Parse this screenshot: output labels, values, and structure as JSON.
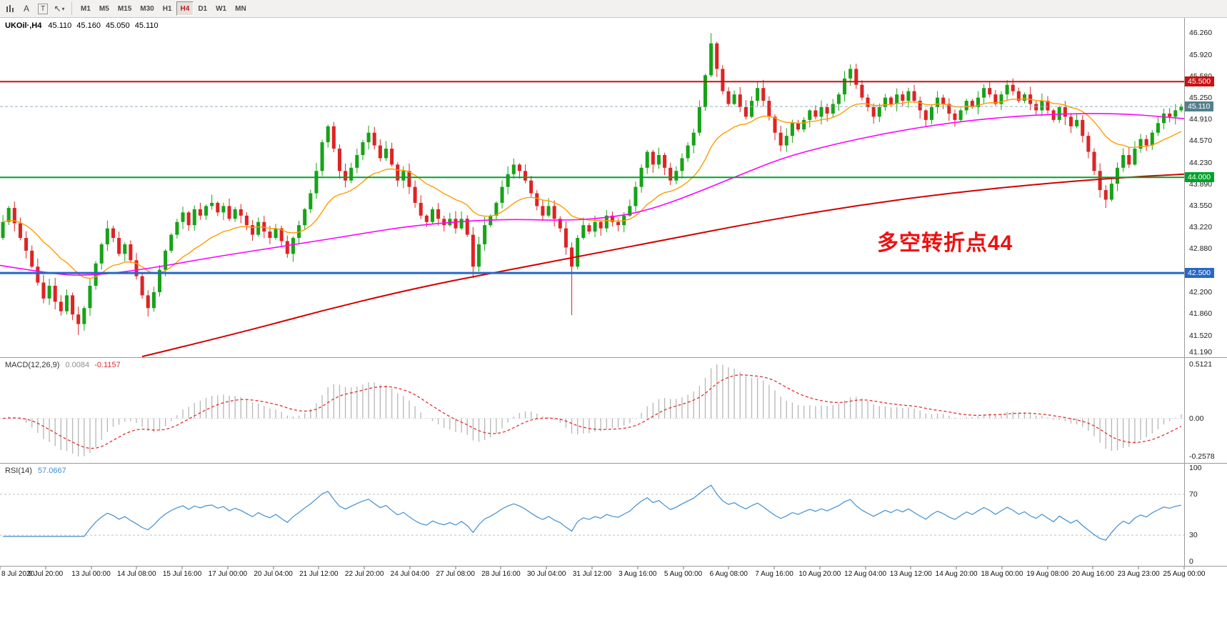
{
  "toolbar": {
    "icon_a": "A",
    "icon_t": "T",
    "icon_cursor": "↖",
    "icon_caret": "▾",
    "timeframes": [
      "M1",
      "M5",
      "M15",
      "M30",
      "H1",
      "H4",
      "D1",
      "W1",
      "MN"
    ],
    "active_timeframe": "H4"
  },
  "chart_header": {
    "symbol": "UKOil·,H4",
    "open": "45.110",
    "high": "45.160",
    "low": "45.050",
    "close": "45.110"
  },
  "chart_data": {
    "type": "candlestick",
    "symbol": "UKOil",
    "timeframe": "H4",
    "title": "UKOil·,H4 45.110 45.160 45.050 45.110",
    "ohlc_current": {
      "open": 45.11,
      "high": 45.16,
      "low": 45.05,
      "close": 45.11
    },
    "price_range": [
      41.18,
      46.5
    ],
    "open_first": 43.05,
    "closes": [
      43.3,
      43.52,
      43.28,
      43.05,
      42.85,
      42.6,
      42.35,
      42.1,
      42.3,
      42.05,
      41.9,
      42.15,
      41.85,
      41.7,
      41.95,
      42.3,
      42.65,
      42.95,
      43.2,
      43.05,
      42.8,
      42.95,
      42.7,
      42.45,
      42.15,
      41.95,
      42.2,
      42.55,
      42.85,
      43.1,
      43.3,
      43.45,
      43.25,
      43.5,
      43.4,
      43.55,
      43.6,
      43.45,
      43.55,
      43.35,
      43.5,
      43.4,
      43.25,
      43.1,
      43.3,
      43.15,
      43.05,
      43.2,
      43.0,
      42.8,
      43.05,
      43.25,
      43.5,
      43.75,
      44.1,
      44.55,
      44.8,
      44.45,
      44.1,
      43.95,
      44.15,
      44.35,
      44.55,
      44.7,
      44.5,
      44.3,
      44.45,
      44.2,
      43.95,
      44.1,
      43.85,
      43.6,
      43.4,
      43.3,
      43.5,
      43.35,
      43.25,
      43.35,
      43.2,
      43.35,
      43.1,
      42.6,
      42.95,
      43.25,
      43.4,
      43.6,
      43.85,
      44.05,
      44.2,
      44.1,
      43.95,
      43.75,
      43.55,
      43.4,
      43.55,
      43.35,
      43.2,
      42.9,
      42.6,
      43.05,
      43.25,
      43.15,
      43.3,
      43.2,
      43.4,
      43.3,
      43.25,
      43.4,
      43.55,
      43.85,
      44.15,
      44.4,
      44.2,
      44.35,
      44.15,
      43.95,
      44.1,
      44.3,
      44.5,
      44.7,
      45.1,
      45.6,
      46.1,
      45.7,
      45.35,
      45.15,
      45.3,
      45.1,
      44.95,
      45.2,
      45.4,
      45.2,
      44.95,
      44.7,
      44.5,
      44.65,
      44.85,
      44.75,
      44.9,
      45.05,
      44.95,
      45.1,
      45.0,
      45.15,
      45.3,
      45.55,
      45.7,
      45.45,
      45.25,
      45.1,
      44.95,
      45.1,
      45.25,
      45.15,
      45.3,
      45.2,
      45.35,
      45.2,
      45.05,
      44.9,
      45.1,
      45.25,
      45.15,
      45.0,
      44.9,
      45.05,
      45.2,
      45.1,
      45.25,
      45.4,
      45.3,
      45.15,
      45.3,
      45.45,
      45.35,
      45.2,
      45.3,
      45.15,
      45.05,
      45.2,
      45.05,
      44.9,
      45.1,
      44.95,
      44.8,
      44.9,
      44.65,
      44.4,
      44.1,
      43.8,
      43.65,
      43.9,
      44.15,
      44.35,
      44.2,
      44.45,
      44.6,
      44.5,
      44.7,
      44.85,
      45.0,
      44.95,
      45.05,
      45.11
    ],
    "wick_overrides": {
      "2": {
        "high": 43.62
      },
      "13": {
        "low": 41.53
      },
      "25": {
        "low": 41.82
      },
      "81": {
        "low": 42.42
      },
      "98": {
        "low": 41.84
      },
      "122": {
        "high": 46.26
      },
      "146": {
        "high": 45.77
      },
      "190": {
        "low": 43.52
      }
    },
    "ma_fast_period": 18,
    "ma_mid_waypoints": [
      [
        0,
        42.62
      ],
      [
        0.04,
        42.5
      ],
      [
        0.07,
        42.45
      ],
      [
        0.12,
        42.55
      ],
      [
        0.18,
        42.75
      ],
      [
        0.25,
        42.95
      ],
      [
        0.3,
        43.1
      ],
      [
        0.35,
        43.25
      ],
      [
        0.42,
        43.35
      ],
      [
        0.48,
        43.32
      ],
      [
        0.52,
        43.38
      ],
      [
        0.55,
        43.5
      ],
      [
        0.58,
        43.7
      ],
      [
        0.62,
        44.0
      ],
      [
        0.66,
        44.3
      ],
      [
        0.7,
        44.5
      ],
      [
        0.75,
        44.7
      ],
      [
        0.8,
        44.85
      ],
      [
        0.85,
        44.95
      ],
      [
        0.9,
        45.0
      ],
      [
        0.95,
        45.0
      ],
      [
        1,
        44.92
      ]
    ],
    "ma_slow_waypoints": [
      [
        0.12,
        41.19
      ],
      [
        0.2,
        41.55
      ],
      [
        0.28,
        41.95
      ],
      [
        0.36,
        42.3
      ],
      [
        0.43,
        42.55
      ],
      [
        0.5,
        42.8
      ],
      [
        0.57,
        43.05
      ],
      [
        0.64,
        43.3
      ],
      [
        0.72,
        43.55
      ],
      [
        0.8,
        43.75
      ],
      [
        0.88,
        43.9
      ],
      [
        0.95,
        44.0
      ],
      [
        1,
        44.05
      ]
    ],
    "colors": {
      "up": "#17a317",
      "down": "#dd2424",
      "ma_fast": "#ff9c00",
      "ma_mid": "#ff00ff",
      "ma_slow": "#d40000",
      "macd_hist": "#b6b6b6",
      "macd_signal": "#e03030",
      "rsi_line": "#3f8fd2",
      "level_line": "#c0c0c0"
    },
    "hlines": [
      {
        "price": 45.5,
        "label": "45.500",
        "color": "#cc1111",
        "width": 2
      },
      {
        "price": 44.0,
        "label": "44.000",
        "color": "#00a22a",
        "width": 2
      },
      {
        "price": 42.5,
        "label": "42.500",
        "color": "#2668c8",
        "width": 3
      }
    ],
    "current_price": {
      "value": 45.11,
      "label": "45.110",
      "line_color": "#8fb2bc",
      "tag_color": "#53808f"
    },
    "annotation": {
      "text": "多空转折点44",
      "color": "#ee1111"
    },
    "price_axis_labels": [
      "46.260",
      "45.920",
      "45.580",
      "45.250",
      "44.910",
      "44.570",
      "44.230",
      "43.890",
      "43.550",
      "43.220",
      "42.880",
      "42.540",
      "42.200",
      "41.860",
      "41.520",
      "41.190"
    ],
    "time_axis_labels": [
      "8 Jul 2020",
      "9 Jul 20:00",
      "13 Jul 00:00",
      "14 Jul 08:00",
      "15 Jul 16:00",
      "17 Jul 00:00",
      "20 Jul 04:00",
      "21 Jul 12:00",
      "22 Jul 20:00",
      "24 Jul 04:00",
      "27 Jul 08:00",
      "28 Jul 16:00",
      "30 Jul 04:00",
      "31 Jul 12:00",
      "3 Aug 16:00",
      "5 Aug 00:00",
      "6 Aug 08:00",
      "7 Aug 16:00",
      "10 Aug 20:00",
      "12 Aug 04:00",
      "13 Aug 12:00",
      "14 Aug 20:00",
      "18 Aug 00:00",
      "19 Aug 08:00",
      "20 Aug 16:00",
      "23 Aug 23:00",
      "25 Aug 00:00"
    ],
    "macd": {
      "label": "MACD(12,26,9)",
      "params": [
        12,
        26,
        9
      ],
      "value_main": "0.0084",
      "value_signal": "-0.1157",
      "axis_labels": [
        "0.5121",
        "0.00",
        "-0.2578"
      ]
    },
    "rsi": {
      "label": "RSI(14)",
      "period": 14,
      "value": "57.0667",
      "axis_labels": [
        "100",
        "70",
        "30",
        "0"
      ],
      "levels": [
        70,
        30
      ]
    }
  }
}
